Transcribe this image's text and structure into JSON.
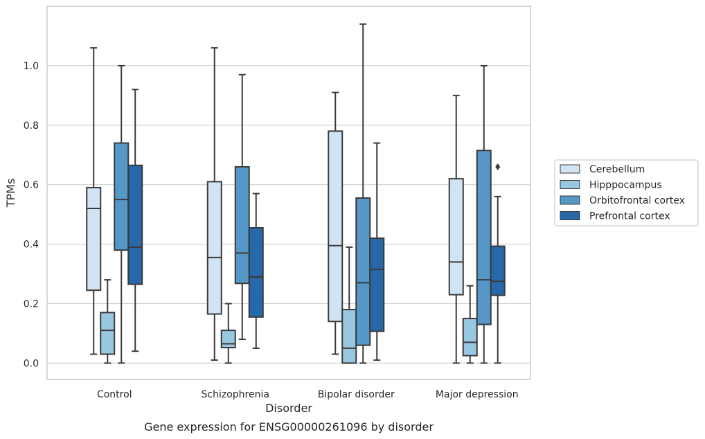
{
  "caption": "Gene expression for ENSG00000261096 by disorder",
  "chart_data": {
    "type": "box",
    "xlabel": "Disorder",
    "ylabel": "TPMs",
    "categories": [
      "Control",
      "Schizophrenia",
      "Bipolar disorder",
      "Major depression"
    ],
    "ylim": [
      -0.055,
      1.2
    ],
    "yticks": [
      0.0,
      0.2,
      0.4,
      0.6,
      0.8,
      1.0
    ],
    "ytick_labels": [
      "0.0",
      "0.2",
      "0.4",
      "0.6",
      "0.8",
      "1.0"
    ],
    "grid": true,
    "legend_position": "right",
    "series": [
      {
        "name": "Cerebellum",
        "color": "#d2e3f3",
        "boxes": [
          {
            "whisker_low": 0.03,
            "q1": 0.245,
            "median": 0.52,
            "q3": 0.59,
            "whisker_high": 1.06,
            "outliers": []
          },
          {
            "whisker_low": 0.01,
            "q1": 0.165,
            "median": 0.355,
            "q3": 0.61,
            "whisker_high": 1.06,
            "outliers": []
          },
          {
            "whisker_low": 0.03,
            "q1": 0.14,
            "median": 0.395,
            "q3": 0.78,
            "whisker_high": 0.91,
            "outliers": []
          },
          {
            "whisker_low": 0.0,
            "q1": 0.23,
            "median": 0.34,
            "q3": 0.62,
            "whisker_high": 0.9,
            "outliers": []
          }
        ]
      },
      {
        "name": "Hipppocampus",
        "color": "#99c7e0",
        "boxes": [
          {
            "whisker_low": 0.0,
            "q1": 0.03,
            "median": 0.11,
            "q3": 0.17,
            "whisker_high": 0.28,
            "outliers": []
          },
          {
            "whisker_low": 0.0,
            "q1": 0.052,
            "median": 0.065,
            "q3": 0.11,
            "whisker_high": 0.2,
            "outliers": []
          },
          {
            "whisker_low": 0.0,
            "q1": 0.0,
            "median": 0.05,
            "q3": 0.18,
            "whisker_high": 0.39,
            "outliers": []
          },
          {
            "whisker_low": 0.0,
            "q1": 0.025,
            "median": 0.07,
            "q3": 0.15,
            "whisker_high": 0.26,
            "outliers": []
          }
        ]
      },
      {
        "name": "Orbitofrontal cortex",
        "color": "#5597c7",
        "boxes": [
          {
            "whisker_low": 0.0,
            "q1": 0.38,
            "median": 0.55,
            "q3": 0.74,
            "whisker_high": 1.0,
            "outliers": []
          },
          {
            "whisker_low": 0.08,
            "q1": 0.268,
            "median": 0.37,
            "q3": 0.66,
            "whisker_high": 0.97,
            "outliers": []
          },
          {
            "whisker_low": 0.0,
            "q1": 0.06,
            "median": 0.27,
            "q3": 0.555,
            "whisker_high": 1.14,
            "outliers": []
          },
          {
            "whisker_low": 0.0,
            "q1": 0.13,
            "median": 0.28,
            "q3": 0.715,
            "whisker_high": 1.0,
            "outliers": []
          }
        ]
      },
      {
        "name": "Prefrontal cortex",
        "color": "#2867aa",
        "boxes": [
          {
            "whisker_low": 0.04,
            "q1": 0.265,
            "median": 0.39,
            "q3": 0.665,
            "whisker_high": 0.92,
            "outliers": []
          },
          {
            "whisker_low": 0.05,
            "q1": 0.155,
            "median": 0.29,
            "q3": 0.455,
            "whisker_high": 0.57,
            "outliers": []
          },
          {
            "whisker_low": 0.01,
            "q1": 0.107,
            "median": 0.315,
            "q3": 0.42,
            "whisker_high": 0.74,
            "outliers": []
          },
          {
            "whisker_low": 0.0,
            "q1": 0.228,
            "median": 0.275,
            "q3": 0.393,
            "whisker_high": 0.56,
            "outliers": [
              0.66
            ]
          }
        ]
      }
    ]
  },
  "colors": {
    "edge": "#3a3a3a",
    "grid": "#cfcfcf",
    "frame": "#cccccc"
  }
}
